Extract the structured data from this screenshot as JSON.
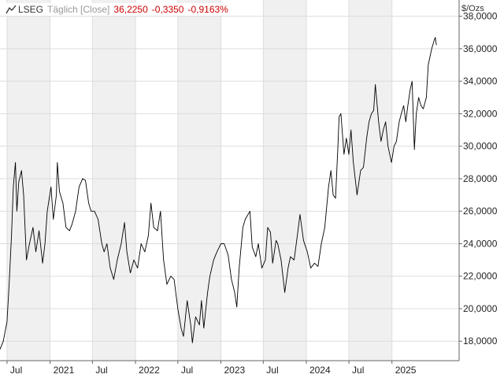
{
  "legend": {
    "source": "LSEG",
    "frequency": "Täglich [Close]",
    "last": "36,2250",
    "change": "-0,3350",
    "change_pct": "-0,9163%",
    "change_color": "#cc0000"
  },
  "colors": {
    "background": "#ffffff",
    "band_shaded": "#f0f0f0",
    "grid": "#dddddd",
    "line": "#000000",
    "axis_text": "#222222"
  },
  "chart_data": {
    "type": "line",
    "title": "",
    "xlabel": "",
    "ylabel": "$/Ozs",
    "grid": true,
    "legend_position": "top-left",
    "xlim": [
      "2020-06-01",
      "2025-10-15"
    ],
    "ylim": [
      16800,
      39000
    ],
    "y_ticks": [
      18000,
      20000,
      22000,
      24000,
      26000,
      28000,
      30000,
      32000,
      34000,
      36000,
      38000
    ],
    "y_tick_labels": [
      "18,0000",
      "20,0000",
      "22,0000",
      "24,0000",
      "26,0000",
      "28,0000",
      "30,0000",
      "32,0000",
      "34,0000",
      "36,0000",
      "38,0000"
    ],
    "x_ticks": [
      {
        "date": "2020-07-01",
        "label": "Jul"
      },
      {
        "date": "2021-01-01",
        "label": "2021"
      },
      {
        "date": "2021-07-01",
        "label": "Jul"
      },
      {
        "date": "2022-01-01",
        "label": "2022"
      },
      {
        "date": "2022-07-01",
        "label": "Jul"
      },
      {
        "date": "2023-01-01",
        "label": "2023"
      },
      {
        "date": "2023-07-01",
        "label": "Jul"
      },
      {
        "date": "2024-01-01",
        "label": "2024"
      },
      {
        "date": "2024-07-01",
        "label": "Jul"
      },
      {
        "date": "2025-01-01",
        "label": "2025"
      }
    ],
    "series": [
      {
        "points": [
          [
            "2020-06-01",
            17500
          ],
          [
            "2020-06-15",
            18000
          ],
          [
            "2020-07-01",
            19200
          ],
          [
            "2020-07-10",
            21500
          ],
          [
            "2020-07-20",
            24500
          ],
          [
            "2020-07-28",
            27500
          ],
          [
            "2020-08-06",
            29000
          ],
          [
            "2020-08-12",
            26000
          ],
          [
            "2020-08-20",
            27800
          ],
          [
            "2020-09-01",
            28500
          ],
          [
            "2020-09-10",
            27000
          ],
          [
            "2020-09-22",
            23000
          ],
          [
            "2020-10-05",
            24000
          ],
          [
            "2020-10-20",
            25000
          ],
          [
            "2020-11-01",
            23500
          ],
          [
            "2020-11-15",
            24800
          ],
          [
            "2020-11-30",
            22800
          ],
          [
            "2020-12-10",
            24000
          ],
          [
            "2020-12-20",
            26000
          ],
          [
            "2021-01-05",
            27500
          ],
          [
            "2021-01-15",
            25500
          ],
          [
            "2021-01-28",
            27000
          ],
          [
            "2021-02-01",
            29000
          ],
          [
            "2021-02-10",
            27200
          ],
          [
            "2021-02-25",
            26500
          ],
          [
            "2021-03-10",
            25000
          ],
          [
            "2021-03-25",
            24800
          ],
          [
            "2021-04-05",
            25200
          ],
          [
            "2021-04-20",
            26000
          ],
          [
            "2021-05-05",
            27500
          ],
          [
            "2021-05-20",
            28000
          ],
          [
            "2021-06-01",
            27900
          ],
          [
            "2021-06-15",
            26500
          ],
          [
            "2021-06-25",
            26000
          ],
          [
            "2021-07-10",
            26000
          ],
          [
            "2021-07-25",
            25500
          ],
          [
            "2021-08-10",
            24000
          ],
          [
            "2021-08-20",
            23500
          ],
          [
            "2021-09-01",
            24000
          ],
          [
            "2021-09-15",
            22500
          ],
          [
            "2021-09-30",
            21800
          ],
          [
            "2021-10-15",
            23000
          ],
          [
            "2021-11-01",
            24000
          ],
          [
            "2021-11-15",
            25300
          ],
          [
            "2021-11-25",
            23500
          ],
          [
            "2021-12-10",
            22200
          ],
          [
            "2021-12-25",
            23000
          ],
          [
            "2022-01-10",
            22500
          ],
          [
            "2022-01-25",
            24000
          ],
          [
            "2022-02-10",
            23500
          ],
          [
            "2022-02-25",
            24500
          ],
          [
            "2022-03-08",
            26500
          ],
          [
            "2022-03-20",
            25000
          ],
          [
            "2022-04-05",
            24800
          ],
          [
            "2022-04-18",
            26000
          ],
          [
            "2022-05-01",
            23000
          ],
          [
            "2022-05-15",
            21500
          ],
          [
            "2022-06-01",
            22000
          ],
          [
            "2022-06-15",
            21800
          ],
          [
            "2022-07-01",
            20000
          ],
          [
            "2022-07-15",
            18800
          ],
          [
            "2022-07-25",
            18300
          ],
          [
            "2022-08-10",
            20500
          ],
          [
            "2022-08-25",
            19000
          ],
          [
            "2022-09-01",
            17900
          ],
          [
            "2022-09-15",
            19500
          ],
          [
            "2022-10-01",
            19000
          ],
          [
            "2022-10-10",
            20500
          ],
          [
            "2022-10-20",
            18800
          ],
          [
            "2022-11-05",
            21000
          ],
          [
            "2022-11-15",
            22000
          ],
          [
            "2022-12-01",
            23000
          ],
          [
            "2022-12-15",
            23500
          ],
          [
            "2023-01-01",
            24000
          ],
          [
            "2023-01-15",
            24000
          ],
          [
            "2023-02-01",
            23300
          ],
          [
            "2023-02-15",
            21800
          ],
          [
            "2023-03-01",
            21000
          ],
          [
            "2023-03-10",
            20100
          ],
          [
            "2023-03-20",
            22500
          ],
          [
            "2023-04-05",
            25000
          ],
          [
            "2023-04-15",
            25500
          ],
          [
            "2023-05-05",
            26000
          ],
          [
            "2023-05-15",
            23800
          ],
          [
            "2023-05-30",
            23200
          ],
          [
            "2023-06-10",
            24000
          ],
          [
            "2023-06-25",
            22500
          ],
          [
            "2023-07-10",
            23000
          ],
          [
            "2023-07-20",
            25000
          ],
          [
            "2023-08-01",
            24700
          ],
          [
            "2023-08-10",
            22800
          ],
          [
            "2023-08-25",
            24200
          ],
          [
            "2023-09-01",
            24000
          ],
          [
            "2023-09-15",
            23000
          ],
          [
            "2023-10-01",
            21000
          ],
          [
            "2023-10-15",
            22500
          ],
          [
            "2023-10-25",
            23200
          ],
          [
            "2023-11-10",
            23000
          ],
          [
            "2023-11-28",
            25000
          ],
          [
            "2023-12-05",
            25800
          ],
          [
            "2023-12-20",
            24200
          ],
          [
            "2024-01-05",
            23500
          ],
          [
            "2024-01-20",
            22500
          ],
          [
            "2024-02-05",
            22800
          ],
          [
            "2024-02-20",
            22600
          ],
          [
            "2024-03-05",
            24000
          ],
          [
            "2024-03-20",
            25000
          ],
          [
            "2024-04-05",
            27500
          ],
          [
            "2024-04-15",
            28500
          ],
          [
            "2024-04-25",
            27000
          ],
          [
            "2024-05-05",
            26800
          ],
          [
            "2024-05-15",
            30000
          ],
          [
            "2024-05-20",
            31800
          ],
          [
            "2024-05-28",
            32000
          ],
          [
            "2024-06-10",
            29500
          ],
          [
            "2024-06-20",
            30500
          ],
          [
            "2024-07-01",
            29500
          ],
          [
            "2024-07-10",
            31000
          ],
          [
            "2024-07-20",
            29000
          ],
          [
            "2024-08-05",
            27000
          ],
          [
            "2024-08-20",
            28500
          ],
          [
            "2024-09-01",
            28700
          ],
          [
            "2024-09-15",
            30500
          ],
          [
            "2024-09-25",
            31500
          ],
          [
            "2024-10-05",
            32000
          ],
          [
            "2024-10-15",
            32200
          ],
          [
            "2024-10-22",
            33800
          ],
          [
            "2024-11-05",
            31500
          ],
          [
            "2024-11-15",
            30300
          ],
          [
            "2024-11-25",
            31000
          ],
          [
            "2024-12-05",
            31500
          ],
          [
            "2024-12-15",
            30000
          ],
          [
            "2024-12-30",
            29000
          ],
          [
            "2025-01-10",
            30000
          ],
          [
            "2025-01-20",
            30300
          ],
          [
            "2025-02-01",
            31500
          ],
          [
            "2025-02-10",
            32000
          ],
          [
            "2025-02-20",
            32500
          ],
          [
            "2025-03-01",
            31500
          ],
          [
            "2025-03-10",
            32500
          ],
          [
            "2025-03-20",
            33500
          ],
          [
            "2025-03-28",
            34000
          ],
          [
            "2025-04-07",
            29800
          ],
          [
            "2025-04-15",
            32000
          ],
          [
            "2025-04-25",
            33000
          ],
          [
            "2025-05-05",
            32500
          ],
          [
            "2025-05-15",
            32300
          ],
          [
            "2025-05-28",
            33000
          ],
          [
            "2025-06-05",
            35000
          ],
          [
            "2025-06-20",
            36000
          ],
          [
            "2025-06-30",
            36500
          ],
          [
            "2025-07-05",
            36700
          ],
          [
            "2025-07-10",
            36225
          ]
        ]
      }
    ]
  }
}
